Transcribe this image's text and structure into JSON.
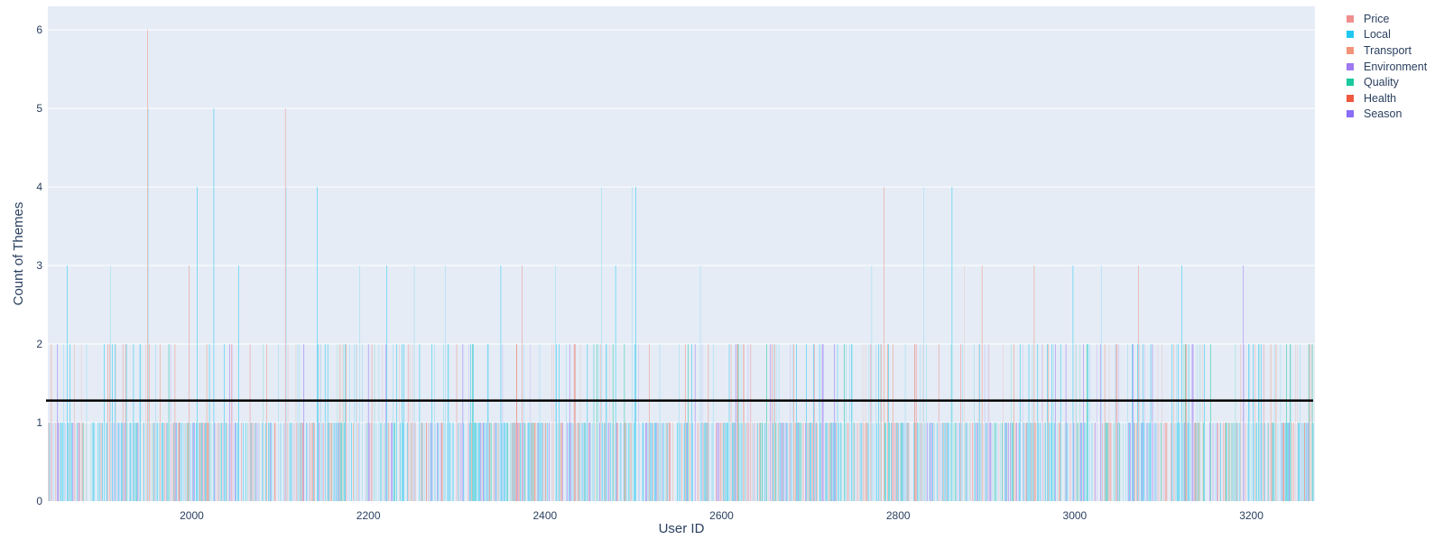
{
  "chart_data": {
    "type": "bar",
    "title": "",
    "xlabel": "User ID",
    "ylabel": "Count of Themes",
    "xlim": [
      1837,
      3272
    ],
    "ylim": [
      0,
      6.3
    ],
    "x_ticks": [
      2000,
      2200,
      2400,
      2600,
      2800,
      3000,
      3200
    ],
    "y_ticks": [
      0,
      1,
      2,
      3,
      4,
      5,
      6
    ],
    "grid": true,
    "legend_position": "top-right",
    "mean_line": 1.28,
    "series": [
      {
        "name": "Price",
        "color": "#ef8f8f"
      },
      {
        "name": "Local",
        "color": "#1ec8f0"
      },
      {
        "name": "Transport",
        "color": "#f3937a"
      },
      {
        "name": "Environment",
        "color": "#a078f0"
      },
      {
        "name": "Quality",
        "color": "#1ac99e"
      },
      {
        "name": "Health",
        "color": "#ef5940"
      },
      {
        "name": "Season",
        "color": "#8a6cf5"
      }
    ],
    "highlight_bars": [
      {
        "x": 1950,
        "y": 6,
        "series": "Transport"
      },
      {
        "x": 1951,
        "y": 5,
        "series": "Local"
      },
      {
        "x": 2025,
        "y": 5,
        "series": "Local"
      },
      {
        "x": 2106,
        "y": 5,
        "series": "Price"
      },
      {
        "x": 2006,
        "y": 4,
        "series": "Local"
      },
      {
        "x": 2107,
        "y": 4,
        "series": "Local"
      },
      {
        "x": 2142,
        "y": 4,
        "series": "Local"
      },
      {
        "x": 2464,
        "y": 4,
        "series": "Local"
      },
      {
        "x": 2499,
        "y": 4,
        "series": "Local"
      },
      {
        "x": 2503,
        "y": 4,
        "series": "Local"
      },
      {
        "x": 2784,
        "y": 4,
        "series": "Transport"
      },
      {
        "x": 2829,
        "y": 4,
        "series": "Local"
      },
      {
        "x": 2861,
        "y": 4,
        "series": "Local"
      },
      {
        "x": 1859,
        "y": 3,
        "series": "Local"
      },
      {
        "x": 1908,
        "y": 3,
        "series": "Local"
      },
      {
        "x": 1997,
        "y": 3,
        "series": "Price"
      },
      {
        "x": 2053,
        "y": 3,
        "series": "Local"
      },
      {
        "x": 2190,
        "y": 3,
        "series": "Local"
      },
      {
        "x": 2221,
        "y": 3,
        "series": "Local"
      },
      {
        "x": 2252,
        "y": 3,
        "series": "Local"
      },
      {
        "x": 2287,
        "y": 3,
        "series": "Local"
      },
      {
        "x": 2350,
        "y": 3,
        "series": "Local"
      },
      {
        "x": 2374,
        "y": 3,
        "series": "Price"
      },
      {
        "x": 2412,
        "y": 3,
        "series": "Local"
      },
      {
        "x": 2480,
        "y": 3,
        "series": "Local"
      },
      {
        "x": 2576,
        "y": 3,
        "series": "Local"
      },
      {
        "x": 2770,
        "y": 3,
        "series": "Local"
      },
      {
        "x": 2875,
        "y": 3,
        "series": "Transport"
      },
      {
        "x": 2895,
        "y": 3,
        "series": "Transport"
      },
      {
        "x": 2954,
        "y": 3,
        "series": "Transport"
      },
      {
        "x": 2998,
        "y": 3,
        "series": "Local"
      },
      {
        "x": 3030,
        "y": 3,
        "series": "Local"
      },
      {
        "x": 3072,
        "y": 3,
        "series": "Price"
      },
      {
        "x": 3121,
        "y": 3,
        "series": "Local"
      },
      {
        "x": 3191,
        "y": 3,
        "series": "Environment"
      }
    ]
  }
}
